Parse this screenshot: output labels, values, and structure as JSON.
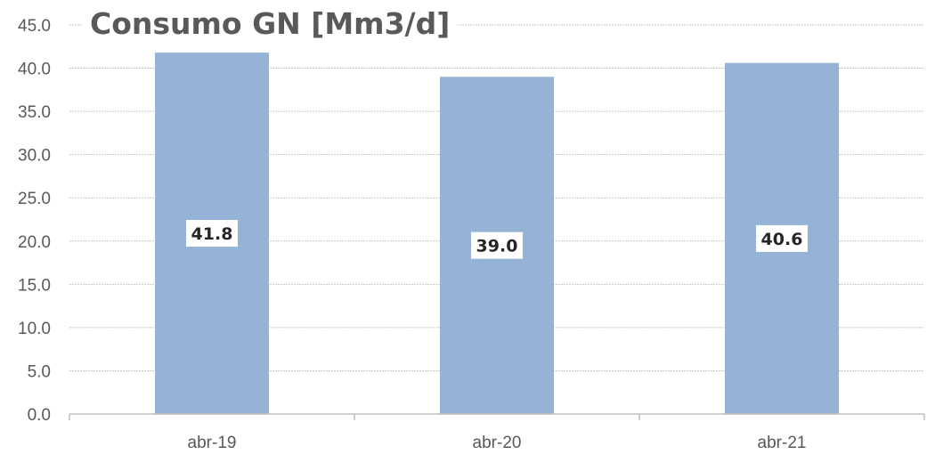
{
  "chart_data": {
    "type": "bar",
    "title": "Consumo GN [Mm3/d]",
    "categories": [
      "abr-19",
      "abr-20",
      "abr-21"
    ],
    "values": [
      41.8,
      39.0,
      40.6
    ],
    "data_labels": [
      "41.8",
      "39.0",
      "40.6"
    ],
    "xlabel": "",
    "ylabel": "",
    "ylim": [
      0,
      45
    ],
    "y_ticks": [
      0,
      5,
      10,
      15,
      20,
      25,
      30,
      35,
      40,
      45
    ],
    "y_tick_labels": [
      "0.0",
      "5.0",
      "10.0",
      "15.0",
      "20.0",
      "25.0",
      "30.0",
      "35.0",
      "40.0",
      "45.0"
    ],
    "grid": true,
    "legend": "none",
    "colors": {
      "bar": "#95b3d7",
      "grid": "#c8c8c8",
      "axis": "#bfbfbf",
      "text": "#595959",
      "data_label_text": "#262626",
      "data_label_bg": "#ffffff"
    }
  }
}
